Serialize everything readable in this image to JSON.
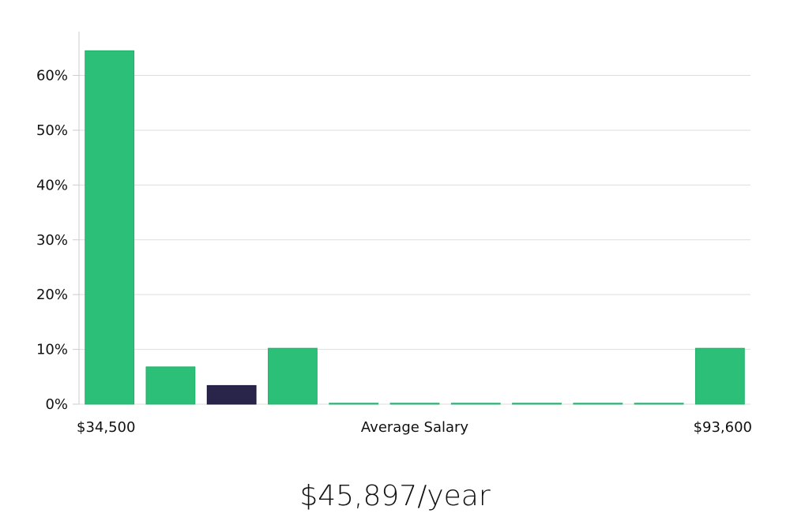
{
  "chart_data": {
    "type": "bar",
    "xlabel": "Average Salary",
    "x_range_labels": [
      "$34,500",
      "$93,600"
    ],
    "ylim": [
      0,
      0.68
    ],
    "y_ticks": [
      0,
      0.1,
      0.2,
      0.3,
      0.4,
      0.5,
      0.6
    ],
    "y_tick_labels": [
      "0%",
      "10%",
      "20%",
      "30%",
      "40%",
      "50%",
      "60%"
    ],
    "grid": true,
    "values": [
      0.645,
      0.068,
      0.034,
      0.102,
      0.0,
      0.0,
      0.0,
      0.0,
      0.0,
      0.0,
      0.102
    ],
    "highlight_index": 2,
    "colors": {
      "bar": "#2bbf78",
      "highlight": "#28244a",
      "grid": "#dddddd",
      "axis": "#cccccc"
    }
  },
  "summary": {
    "salary_text": "$45,897/year"
  }
}
